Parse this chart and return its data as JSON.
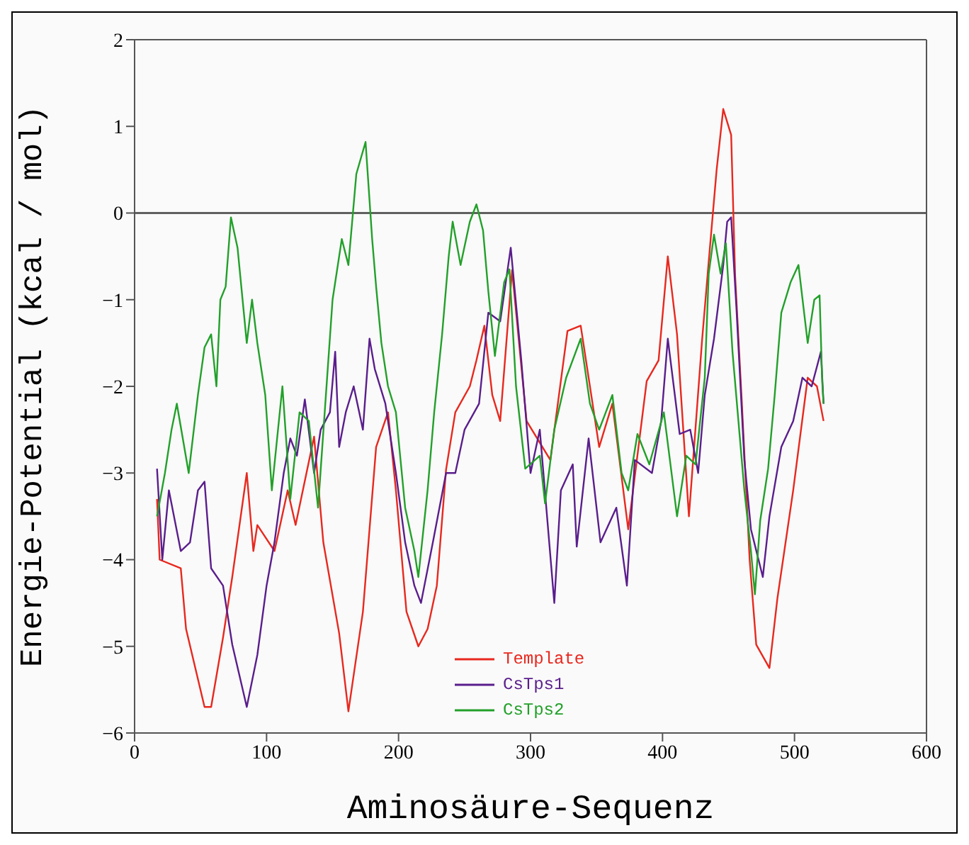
{
  "chart_data": {
    "type": "line",
    "xlabel": "Aminosäure-Sequenz",
    "ylabel": "Energie-Potential (kcal / mol)",
    "xlim": [
      0,
      600
    ],
    "xticks": [
      0,
      100,
      200,
      300,
      400,
      500,
      600
    ],
    "ylim": [
      -6,
      2
    ],
    "yticks": [
      -6,
      -5,
      -4,
      -3,
      -2,
      -1,
      0,
      1,
      2
    ],
    "grid": false,
    "legend": "bottom",
    "marker": "none",
    "line_style": "solid",
    "ref_lines": [
      {
        "axis": "y",
        "value": 0,
        "color": "#606060"
      }
    ],
    "series": [
      {
        "name": "Template",
        "color": "#e8281e",
        "x": [
          17,
          19,
          35,
          39,
          53,
          58,
          67,
          74,
          85,
          90,
          93,
          106,
          116,
          122,
          136,
          143,
          155,
          162,
          173,
          183,
          192,
          198,
          206,
          215,
          222,
          229,
          236,
          243,
          254,
          259,
          265,
          271,
          277,
          286,
          297,
          315,
          328,
          338,
          352,
          362,
          374,
          388,
          397,
          404,
          411,
          420,
          430,
          435,
          441,
          446,
          452,
          455,
          460,
          466,
          471,
          481,
          487,
          499,
          510,
          517,
          522
        ],
        "values": [
          -3.3,
          -4.0,
          -4.1,
          -4.8,
          -5.7,
          -5.7,
          -4.9,
          -4.2,
          -3.0,
          -3.9,
          -3.6,
          -3.9,
          -3.2,
          -3.6,
          -2.58,
          -3.8,
          -4.85,
          -5.75,
          -4.6,
          -2.7,
          -2.3,
          -3.2,
          -4.6,
          -5.0,
          -4.8,
          -4.3,
          -2.96,
          -2.3,
          -2.0,
          -1.7,
          -1.3,
          -2.1,
          -2.4,
          -0.66,
          -2.4,
          -2.85,
          -1.36,
          -1.3,
          -2.7,
          -2.2,
          -3.65,
          -1.94,
          -1.7,
          -0.5,
          -1.4,
          -3.5,
          -1.46,
          -0.56,
          0.5,
          1.2,
          0.9,
          -0.72,
          -2.16,
          -4.0,
          -4.98,
          -5.25,
          -4.45,
          -3.2,
          -1.9,
          -2.0,
          -2.4
        ]
      },
      {
        "name": "CsTps1",
        "color": "#5a1e8c",
        "x": [
          17,
          21,
          26,
          35,
          42,
          48,
          53,
          58,
          67,
          74,
          85,
          93,
          100,
          106,
          113,
          118,
          123,
          129,
          136,
          141,
          148,
          152,
          155,
          160,
          166,
          173,
          178,
          182,
          190,
          198,
          205,
          212,
          217,
          226,
          236,
          243,
          250,
          261,
          268,
          277,
          285,
          293,
          300,
          307,
          318,
          323,
          332,
          335,
          344,
          353,
          365,
          373,
          379,
          392,
          399,
          404,
          413,
          421,
          427,
          432,
          439,
          446,
          449,
          452,
          456,
          462,
          467,
          476,
          481,
          490,
          499,
          506,
          513,
          520,
          522
        ],
        "values": [
          -2.95,
          -4.0,
          -3.2,
          -3.9,
          -3.8,
          -3.2,
          -3.1,
          -4.1,
          -4.3,
          -4.98,
          -5.7,
          -5.1,
          -4.3,
          -3.8,
          -3.0,
          -2.6,
          -2.8,
          -2.15,
          -3.0,
          -2.5,
          -2.3,
          -1.6,
          -2.7,
          -2.3,
          -2.0,
          -2.5,
          -1.45,
          -1.8,
          -2.2,
          -3.0,
          -3.8,
          -4.3,
          -4.5,
          -3.8,
          -3.0,
          -3.0,
          -2.5,
          -2.2,
          -1.15,
          -1.25,
          -0.4,
          -1.7,
          -3.0,
          -2.5,
          -4.5,
          -3.2,
          -2.9,
          -3.85,
          -2.6,
          -3.8,
          -3.4,
          -4.3,
          -2.85,
          -3.0,
          -2.4,
          -1.45,
          -2.55,
          -2.5,
          -3.0,
          -2.1,
          -1.45,
          -0.6,
          -0.1,
          -0.05,
          -1.1,
          -2.85,
          -3.65,
          -4.2,
          -3.5,
          -2.7,
          -2.4,
          -1.9,
          -2.0,
          -1.6,
          -2.2
        ]
      },
      {
        "name": "CsTps2",
        "color": "#22a02a",
        "x": [
          17,
          23,
          28,
          32,
          41,
          48,
          53,
          58,
          62,
          65,
          69,
          73,
          78,
          85,
          89,
          93,
          99,
          104,
          112,
          118,
          125,
          132,
          139,
          150,
          157,
          162,
          168,
          175,
          180,
          183,
          187,
          192,
          198,
          205,
          212,
          215,
          222,
          227,
          233,
          238,
          241,
          247,
          254,
          259,
          264,
          268,
          273,
          280,
          284,
          289,
          296,
          307,
          311,
          318,
          327,
          338,
          345,
          352,
          362,
          369,
          374,
          381,
          390,
          401,
          411,
          418,
          425,
          432,
          435,
          439,
          444,
          448,
          453,
          462,
          467,
          470,
          474,
          480,
          485,
          490,
          497,
          503,
          510,
          515,
          519,
          521,
          522
        ],
        "values": [
          -3.5,
          -3.0,
          -2.5,
          -2.2,
          -3.0,
          -2.1,
          -1.55,
          -1.4,
          -2.0,
          -1.0,
          -0.85,
          -0.05,
          -0.4,
          -1.5,
          -1.0,
          -1.5,
          -2.1,
          -3.2,
          -2.0,
          -3.3,
          -2.3,
          -2.4,
          -3.4,
          -1.0,
          -0.3,
          -0.6,
          0.45,
          0.82,
          -0.3,
          -0.85,
          -1.5,
          -2.0,
          -2.3,
          -3.4,
          -3.9,
          -4.2,
          -3.2,
          -2.3,
          -1.4,
          -0.5,
          -0.1,
          -0.6,
          -0.1,
          0.1,
          -0.2,
          -0.9,
          -1.65,
          -0.8,
          -0.65,
          -2.0,
          -2.95,
          -2.8,
          -3.35,
          -2.5,
          -1.9,
          -1.45,
          -2.2,
          -2.5,
          -2.1,
          -3.0,
          -3.2,
          -2.55,
          -2.9,
          -2.3,
          -3.5,
          -2.8,
          -2.9,
          -1.9,
          -0.7,
          -0.25,
          -0.7,
          -0.35,
          -1.6,
          -3.2,
          -3.9,
          -4.4,
          -3.55,
          -2.95,
          -2.1,
          -1.15,
          -0.8,
          -0.6,
          -1.5,
          -1.0,
          -0.95,
          -1.95,
          -2.2
        ]
      }
    ]
  }
}
